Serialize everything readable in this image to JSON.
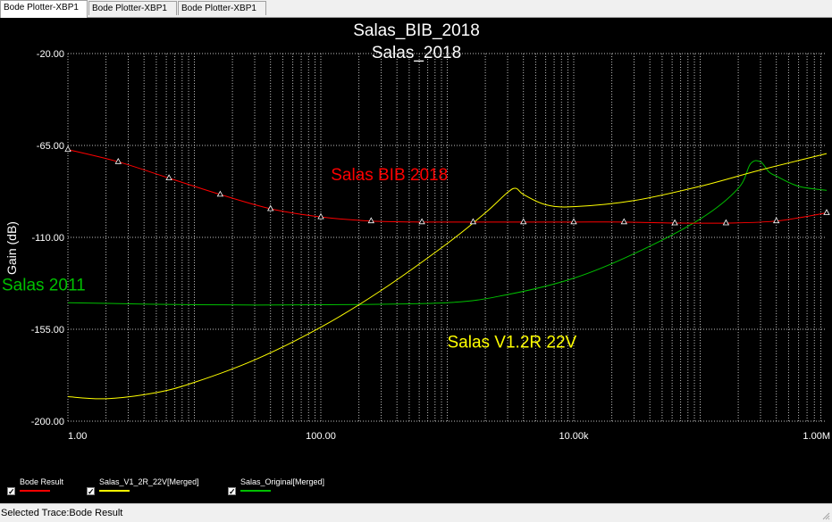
{
  "tabs": [
    {
      "label": "Bode Plotter-XBP1",
      "active": true
    },
    {
      "label": "Bode Plotter-XBP1",
      "active": false
    },
    {
      "label": "Bode Plotter-XBP1",
      "active": false
    }
  ],
  "legend": [
    {
      "label": "Bode Result",
      "color": "#ff0000",
      "checked": true
    },
    {
      "label": "Salas_V1_2R_22V[Merged]",
      "color": "#ffff00",
      "checked": true
    },
    {
      "label": "Salas_Original[Merged]",
      "color": "#00c000",
      "checked": true
    }
  ],
  "status": {
    "text": "Selected Trace:Bode Result"
  },
  "colors": {
    "background": "#000000",
    "grid": "#bfbfbf",
    "axis_text": "#ffffff",
    "red": "#ff0000",
    "yellow": "#ffff00",
    "green": "#00c000"
  },
  "chart_data": {
    "type": "line",
    "title": "Salas_BIB_2018",
    "subtitle": "Salas_2018",
    "xlabel": "",
    "ylabel": "Gain (dB)",
    "xscale": "log",
    "xlim": [
      1,
      1000000
    ],
    "ylim": [
      -200,
      -20
    ],
    "x_ticks": [
      1,
      100,
      10000,
      1000000
    ],
    "x_tick_labels": [
      "1.00",
      "100.00",
      "10.00k",
      "1.00M"
    ],
    "y_ticks": [
      -20,
      -65,
      -110,
      -155,
      -200
    ],
    "y_tick_labels": [
      "-20.00",
      "-65.00",
      "-110.00",
      "-155.00",
      "-200.00"
    ],
    "grid": true,
    "annotations": [
      {
        "text": "Salas BIB 2018",
        "x": 120,
        "y": -82,
        "color": "#ff0000"
      },
      {
        "text": "Salas 2011",
        "x": 0.3,
        "y": -136,
        "color": "#00c000"
      },
      {
        "text": "Salas V1.2R 22V",
        "x": 1000,
        "y": -164,
        "color": "#ffff00"
      }
    ],
    "series": [
      {
        "color": "#ff0000",
        "markers": true,
        "x": [
          1,
          2.5,
          6.3,
          16,
          40,
          100,
          250,
          630,
          1600,
          4000,
          10000,
          25000,
          63000,
          160000,
          400000,
          1000000
        ],
        "y": [
          -67,
          -73,
          -81,
          -89,
          -96,
          -100,
          -102,
          -102.5,
          -102.5,
          -102.5,
          -102.5,
          -102.5,
          -103,
          -103,
          -102,
          -98
        ]
      },
      {
        "color": "#ffff00",
        "markers": false,
        "x": [
          1,
          2,
          5,
          10,
          30,
          100,
          300,
          1000,
          2000,
          3000,
          3500,
          4000,
          6000,
          10000,
          30000,
          100000,
          300000,
          1000000
        ],
        "y": [
          -188,
          -189,
          -186,
          -181,
          -170,
          -154,
          -136,
          -113,
          -98,
          -88,
          -86,
          -89,
          -94,
          -95,
          -92,
          -85,
          -77,
          -69
        ]
      },
      {
        "color": "#00c000",
        "markers": false,
        "x": [
          1,
          10,
          100,
          1000,
          3000,
          10000,
          30000,
          100000,
          200000,
          250000,
          300000,
          350000,
          400000,
          600000,
          1000000
        ],
        "y": [
          -142,
          -143,
          -143,
          -142,
          -138,
          -130,
          -118,
          -101,
          -86,
          -74,
          -73,
          -78,
          -80,
          -85,
          -87
        ]
      }
    ]
  }
}
